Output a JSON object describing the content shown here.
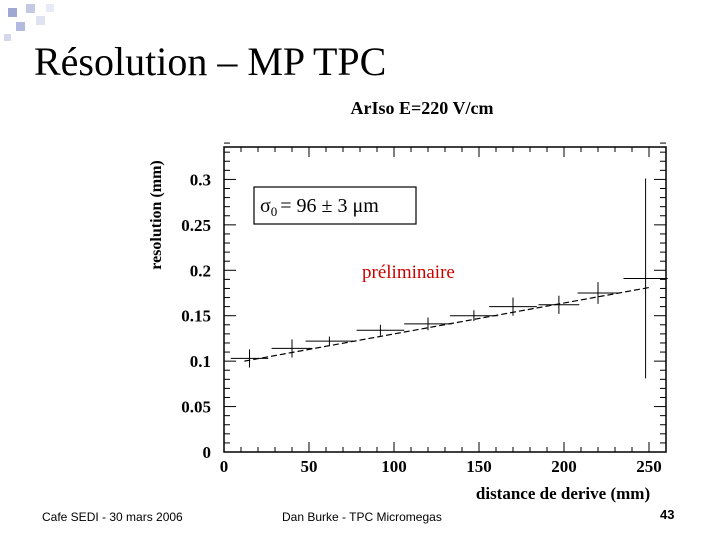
{
  "slide": {
    "title": "Résolution – MP TPC",
    "footer_left": "Cafe SEDI - 30 mars 2006",
    "footer_center": "Dan Burke - TPC Micromegas",
    "page_number": "43"
  },
  "chart_data": {
    "type": "scatter",
    "title": "ArIso E=220 V/cm",
    "xlabel": "distance de derive (mm)",
    "ylabel": "resolution (mm)",
    "xlim": [
      0,
      260
    ],
    "ylim": [
      0,
      0.35
    ],
    "xticks": [
      "0",
      "50",
      "100",
      "150",
      "200",
      "250"
    ],
    "yticks": [
      "0",
      "0.05",
      "0.1",
      "0.15",
      "0.2",
      "0.25",
      "0.3"
    ],
    "annotation_sigma_symbol": "σ",
    "annotation_sigma_sub": "0",
    "annotation_sigma_value": "= 96 ± 3 μm",
    "annotation_prelim": "préliminaire",
    "points": [
      {
        "x": 15,
        "y": 0.103,
        "xerr": 11,
        "yerr": 0.01
      },
      {
        "x": 40,
        "y": 0.114,
        "xerr": 12,
        "yerr": 0.01
      },
      {
        "x": 62,
        "y": 0.122,
        "xerr": 14,
        "yerr": 0.005
      },
      {
        "x": 92,
        "y": 0.134,
        "xerr": 14,
        "yerr": 0.006
      },
      {
        "x": 120,
        "y": 0.141,
        "xerr": 14,
        "yerr": 0.007
      },
      {
        "x": 147,
        "y": 0.15,
        "xerr": 14,
        "yerr": 0.006
      },
      {
        "x": 170,
        "y": 0.16,
        "xerr": 14,
        "yerr": 0.01
      },
      {
        "x": 197,
        "y": 0.162,
        "xerr": 12,
        "yerr": 0.01
      },
      {
        "x": 220,
        "y": 0.175,
        "xerr": 12,
        "yerr": 0.012
      },
      {
        "x": 248,
        "y": 0.191,
        "xerr": 13,
        "yerr": 0.11
      }
    ],
    "fit": {
      "x": [
        12,
        250
      ],
      "y": [
        0.1,
        0.181
      ],
      "style": "dashed"
    }
  }
}
